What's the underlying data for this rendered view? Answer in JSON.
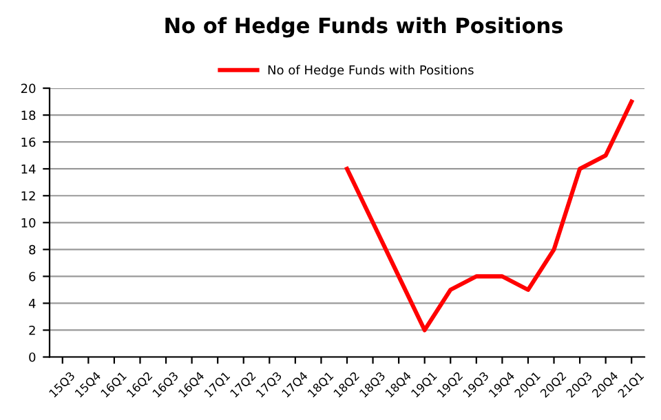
{
  "chart_data": {
    "type": "line",
    "title": "No of Hedge Funds with Positions",
    "categories": [
      "15Q3",
      "15Q4",
      "16Q1",
      "16Q2",
      "16Q3",
      "16Q4",
      "17Q1",
      "17Q2",
      "17Q3",
      "17Q4",
      "18Q1",
      "18Q2",
      "18Q3",
      "18Q4",
      "19Q1",
      "19Q2",
      "19Q3",
      "19Q4",
      "20Q1",
      "20Q2",
      "20Q3",
      "20Q4",
      "21Q1"
    ],
    "series": [
      {
        "name": "No of Hedge Funds with Positions",
        "color": "#ff0000",
        "values": [
          null,
          null,
          null,
          null,
          null,
          null,
          null,
          null,
          null,
          null,
          null,
          14,
          10,
          6,
          2,
          5,
          6,
          6,
          5,
          8,
          14,
          15,
          19
        ]
      }
    ],
    "ylim": [
      0,
      20
    ],
    "yticks": [
      0,
      2,
      4,
      6,
      8,
      10,
      12,
      14,
      16,
      18,
      20
    ],
    "grid": "y",
    "legend": "top",
    "marker": "none",
    "line_style": "solid"
  }
}
